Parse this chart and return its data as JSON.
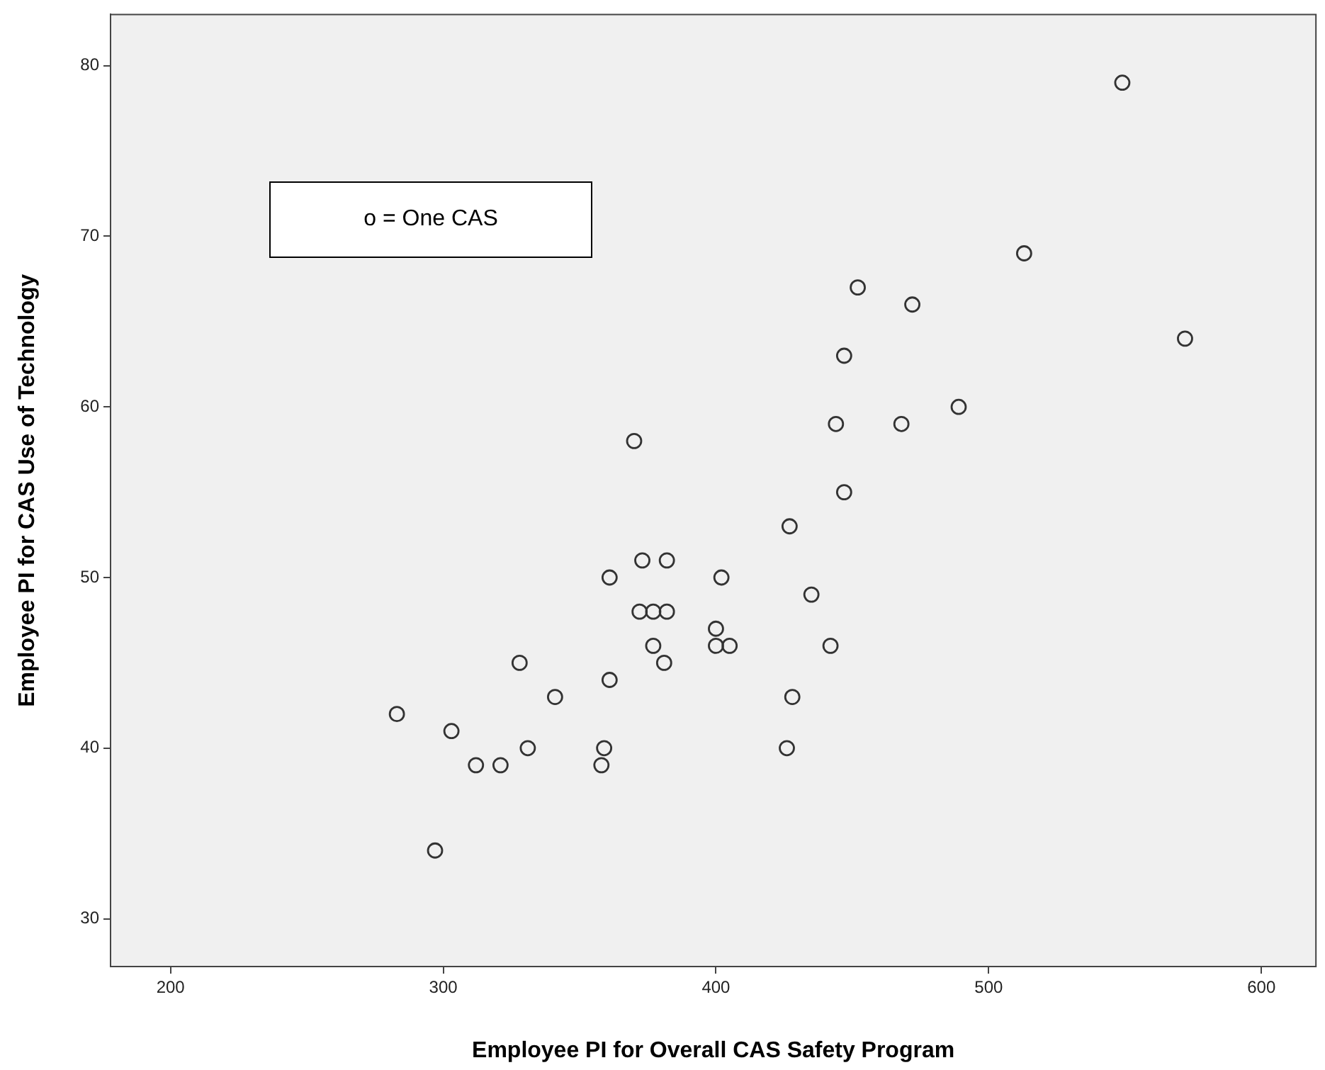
{
  "chart_data": {
    "type": "scatter",
    "xlabel": "Employee PI for Overall CAS Safety Program",
    "ylabel": "Employee PI for CAS Use of Technology",
    "annotations": [
      "o = One CAS"
    ],
    "x": [
      283,
      297,
      303,
      312,
      321,
      328,
      331,
      341,
      358,
      359,
      361,
      361,
      370,
      372,
      373,
      377,
      377,
      381,
      382,
      382,
      400,
      400,
      402,
      405,
      426,
      427,
      428,
      435,
      442,
      444,
      447,
      447,
      452,
      468,
      472,
      489,
      513,
      549,
      572
    ],
    "series": [
      {
        "color": "#333333",
        "values": [
          42,
          34,
          41,
          39,
          39,
          45,
          40,
          43,
          39,
          40,
          44,
          50,
          58,
          48,
          51,
          46,
          48,
          45,
          48,
          51,
          47,
          46,
          50,
          46,
          40,
          53,
          43,
          49,
          46,
          59,
          63,
          55,
          67,
          59,
          66,
          60,
          69,
          79,
          64
        ]
      }
    ],
    "xlim": [
      178,
      620
    ],
    "xticks": [
      200,
      300,
      400,
      500,
      600
    ],
    "ylim": [
      27.2,
      83
    ],
    "yticks": [
      30,
      40,
      50,
      60,
      70,
      80
    ],
    "grid": false,
    "legend": false,
    "marker": "circle"
  }
}
